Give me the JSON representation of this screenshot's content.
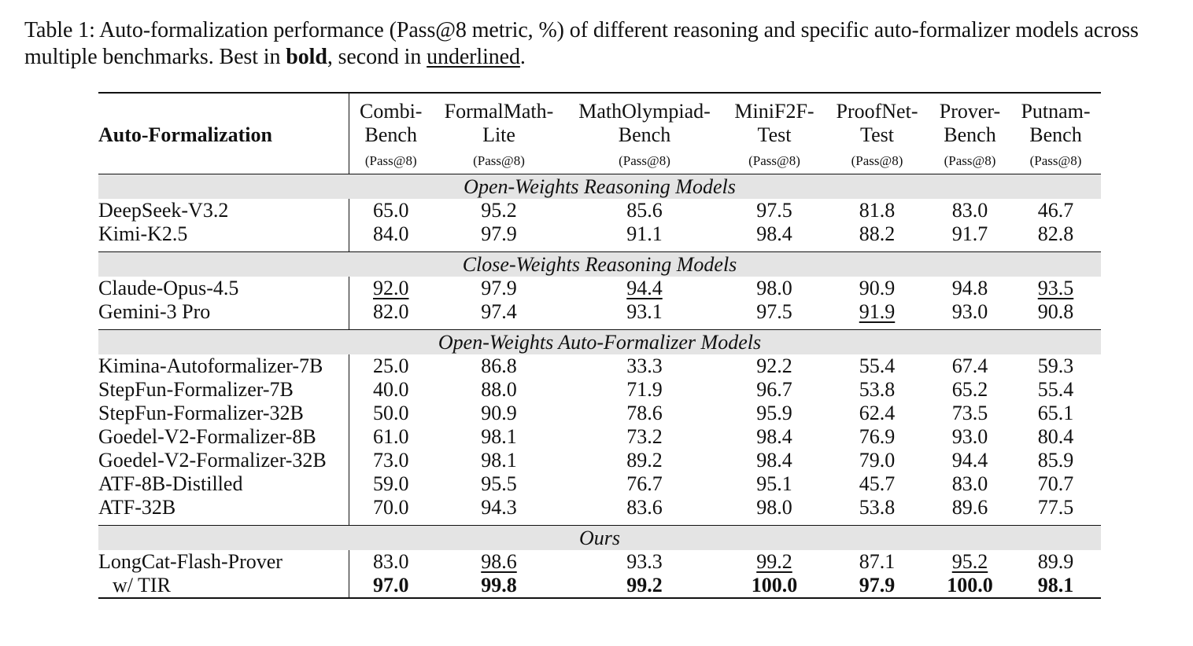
{
  "caption": {
    "part1": "Table 1: Auto-formalization performance (Pass@8 metric, %) of different reasoning and specific auto-formalizer models across multiple benchmarks. Best in ",
    "bold_word": "bold",
    "part2": ", second in ",
    "underline_word": "underlined",
    "part3": "."
  },
  "table": {
    "corner_label": "Auto-Formalization",
    "metric_label": "(Pass@8)",
    "columns": [
      {
        "line1": "Combi-",
        "line2": "Bench"
      },
      {
        "line1": "FormalMath-",
        "line2": "Lite"
      },
      {
        "line1": "MathOlympiad-",
        "line2": "Bench"
      },
      {
        "line1": "MiniF2F-",
        "line2": "Test"
      },
      {
        "line1": "ProofNet-",
        "line2": "Test"
      },
      {
        "line1": "Prover-",
        "line2": "Bench"
      },
      {
        "line1": "Putnam-",
        "line2": "Bench"
      }
    ],
    "sections": [
      {
        "title": "Open-Weights Reasoning Models",
        "rows": [
          {
            "model": "DeepSeek-V3.2",
            "values": [
              "65.0",
              "95.2",
              "85.6",
              "97.5",
              "81.8",
              "83.0",
              "46.7"
            ]
          },
          {
            "model": "Kimi-K2.5",
            "values": [
              "84.0",
              "97.9",
              "91.1",
              "98.4",
              "88.2",
              "91.7",
              "82.8"
            ]
          }
        ]
      },
      {
        "title": "Close-Weights Reasoning Models",
        "rows": [
          {
            "model": "Claude-Opus-4.5",
            "values": [
              "92.0",
              "97.9",
              "94.4",
              "98.0",
              "90.9",
              "94.8",
              "93.5"
            ],
            "underlined": [
              0,
              2,
              6
            ]
          },
          {
            "model": "Gemini-3 Pro",
            "values": [
              "82.0",
              "97.4",
              "93.1",
              "97.5",
              "91.9",
              "93.0",
              "90.8"
            ],
            "underlined": [
              4
            ]
          }
        ]
      },
      {
        "title": "Open-Weights Auto-Formalizer Models",
        "rows": [
          {
            "model": "Kimina-Autoformalizer-7B",
            "values": [
              "25.0",
              "86.8",
              "33.3",
              "92.2",
              "55.4",
              "67.4",
              "59.3"
            ]
          },
          {
            "model": "StepFun-Formalizer-7B",
            "values": [
              "40.0",
              "88.0",
              "71.9",
              "96.7",
              "53.8",
              "65.2",
              "55.4"
            ]
          },
          {
            "model": "StepFun-Formalizer-32B",
            "values": [
              "50.0",
              "90.9",
              "78.6",
              "95.9",
              "62.4",
              "73.5",
              "65.1"
            ]
          },
          {
            "model": "Goedel-V2-Formalizer-8B",
            "values": [
              "61.0",
              "98.1",
              "73.2",
              "98.4",
              "76.9",
              "93.0",
              "80.4"
            ]
          },
          {
            "model": "Goedel-V2-Formalizer-32B",
            "values": [
              "73.0",
              "98.1",
              "89.2",
              "98.4",
              "79.0",
              "94.4",
              "85.9"
            ]
          },
          {
            "model": "ATF-8B-Distilled",
            "values": [
              "59.0",
              "95.5",
              "76.7",
              "95.1",
              "45.7",
              "83.0",
              "70.7"
            ]
          },
          {
            "model": "ATF-32B",
            "values": [
              "70.0",
              "94.3",
              "83.6",
              "98.0",
              "53.8",
              "89.6",
              "77.5"
            ]
          }
        ]
      },
      {
        "title": "Ours",
        "rows": [
          {
            "model": "LongCat-Flash-Prover",
            "values": [
              "83.0",
              "98.6",
              "93.3",
              "99.2",
              "87.1",
              "95.2",
              "89.9"
            ],
            "underlined": [
              1,
              3,
              5
            ]
          },
          {
            "model": "w/ TIR",
            "values": [
              "97.0",
              "99.8",
              "99.2",
              "100.0",
              "97.9",
              "100.0",
              "98.1"
            ],
            "bold": [
              0,
              1,
              2,
              3,
              4,
              5,
              6
            ],
            "sub": true
          }
        ]
      }
    ]
  }
}
